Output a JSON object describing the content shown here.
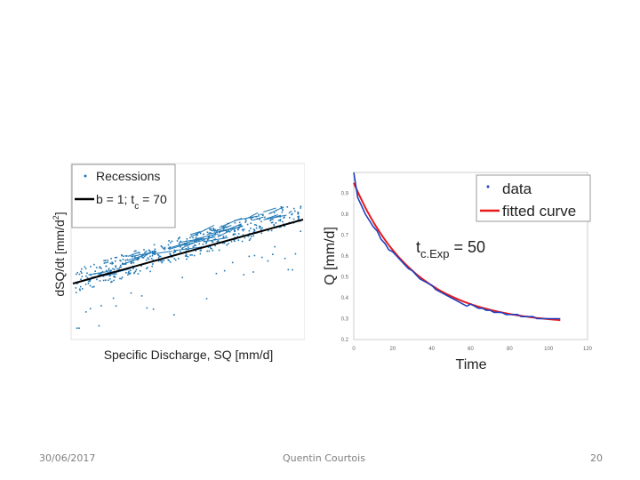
{
  "footer": {
    "date": "30/06/2017",
    "author": "Quentin Courtois",
    "page_number": "20"
  },
  "colors": {
    "data_blue": "#1f77b4",
    "fit_red": "#e8191a",
    "line_black": "#000000",
    "axis_gray": "#888888"
  },
  "chart_data": [
    {
      "type": "scatter",
      "xlabel": "Specific Discharge, SQ [mm/d]",
      "ylabel_main": "dSQ/dt [mm/d",
      "ylabel_sup": "2",
      "ylabel_end": "]",
      "legend": {
        "placement": "top-left",
        "entries": [
          "Recessions",
          "b = 1; t",
          "c",
          " = 70"
        ]
      },
      "series": [
        {
          "name": "Recessions",
          "kind": "points"
        },
        {
          "name": "b = 1; tc = 70",
          "kind": "line"
        }
      ],
      "b": 1,
      "tc": 70
    },
    {
      "type": "line",
      "xlabel": "Time",
      "ylabel": "Q [mm/d]",
      "xlim": [
        0,
        120
      ],
      "ylim": [
        0.2,
        1.0
      ],
      "xticks": [
        0,
        20,
        40,
        60,
        80,
        100,
        120
      ],
      "yticks": [
        0.2,
        0.3,
        0.4,
        0.5,
        0.6,
        0.7,
        0.8,
        0.9
      ],
      "annotation": {
        "text": "t",
        "sub": "c.Exp",
        "rest": " = 50"
      },
      "legend": {
        "placement": "top-right",
        "entries": [
          "data",
          "fitted curve"
        ]
      },
      "series": [
        {
          "name": "data",
          "x": [
            0,
            2,
            4,
            6,
            8,
            10,
            12,
            14,
            16,
            18,
            20,
            22,
            24,
            26,
            28,
            30,
            32,
            34,
            36,
            38,
            40,
            42,
            44,
            46,
            48,
            50,
            52,
            54,
            56,
            58,
            60,
            62,
            64,
            66,
            68,
            70,
            72,
            74,
            76,
            78,
            80,
            82,
            84,
            86,
            88,
            90,
            92,
            94,
            96,
            98,
            100,
            102,
            104,
            106
          ],
          "y": [
            1.0,
            0.88,
            0.84,
            0.8,
            0.77,
            0.74,
            0.72,
            0.68,
            0.66,
            0.63,
            0.62,
            0.6,
            0.58,
            0.56,
            0.54,
            0.53,
            0.51,
            0.49,
            0.48,
            0.47,
            0.46,
            0.44,
            0.43,
            0.42,
            0.41,
            0.4,
            0.39,
            0.38,
            0.37,
            0.36,
            0.37,
            0.36,
            0.35,
            0.35,
            0.34,
            0.34,
            0.33,
            0.33,
            0.33,
            0.32,
            0.32,
            0.32,
            0.32,
            0.31,
            0.31,
            0.31,
            0.31,
            0.3,
            0.3,
            0.3,
            0.3,
            0.3,
            0.3,
            0.3
          ]
        },
        {
          "name": "fitted curve",
          "function": "exponential",
          "q0": 0.95,
          "qinf": 0.27,
          "tc": 50
        }
      ]
    }
  ]
}
